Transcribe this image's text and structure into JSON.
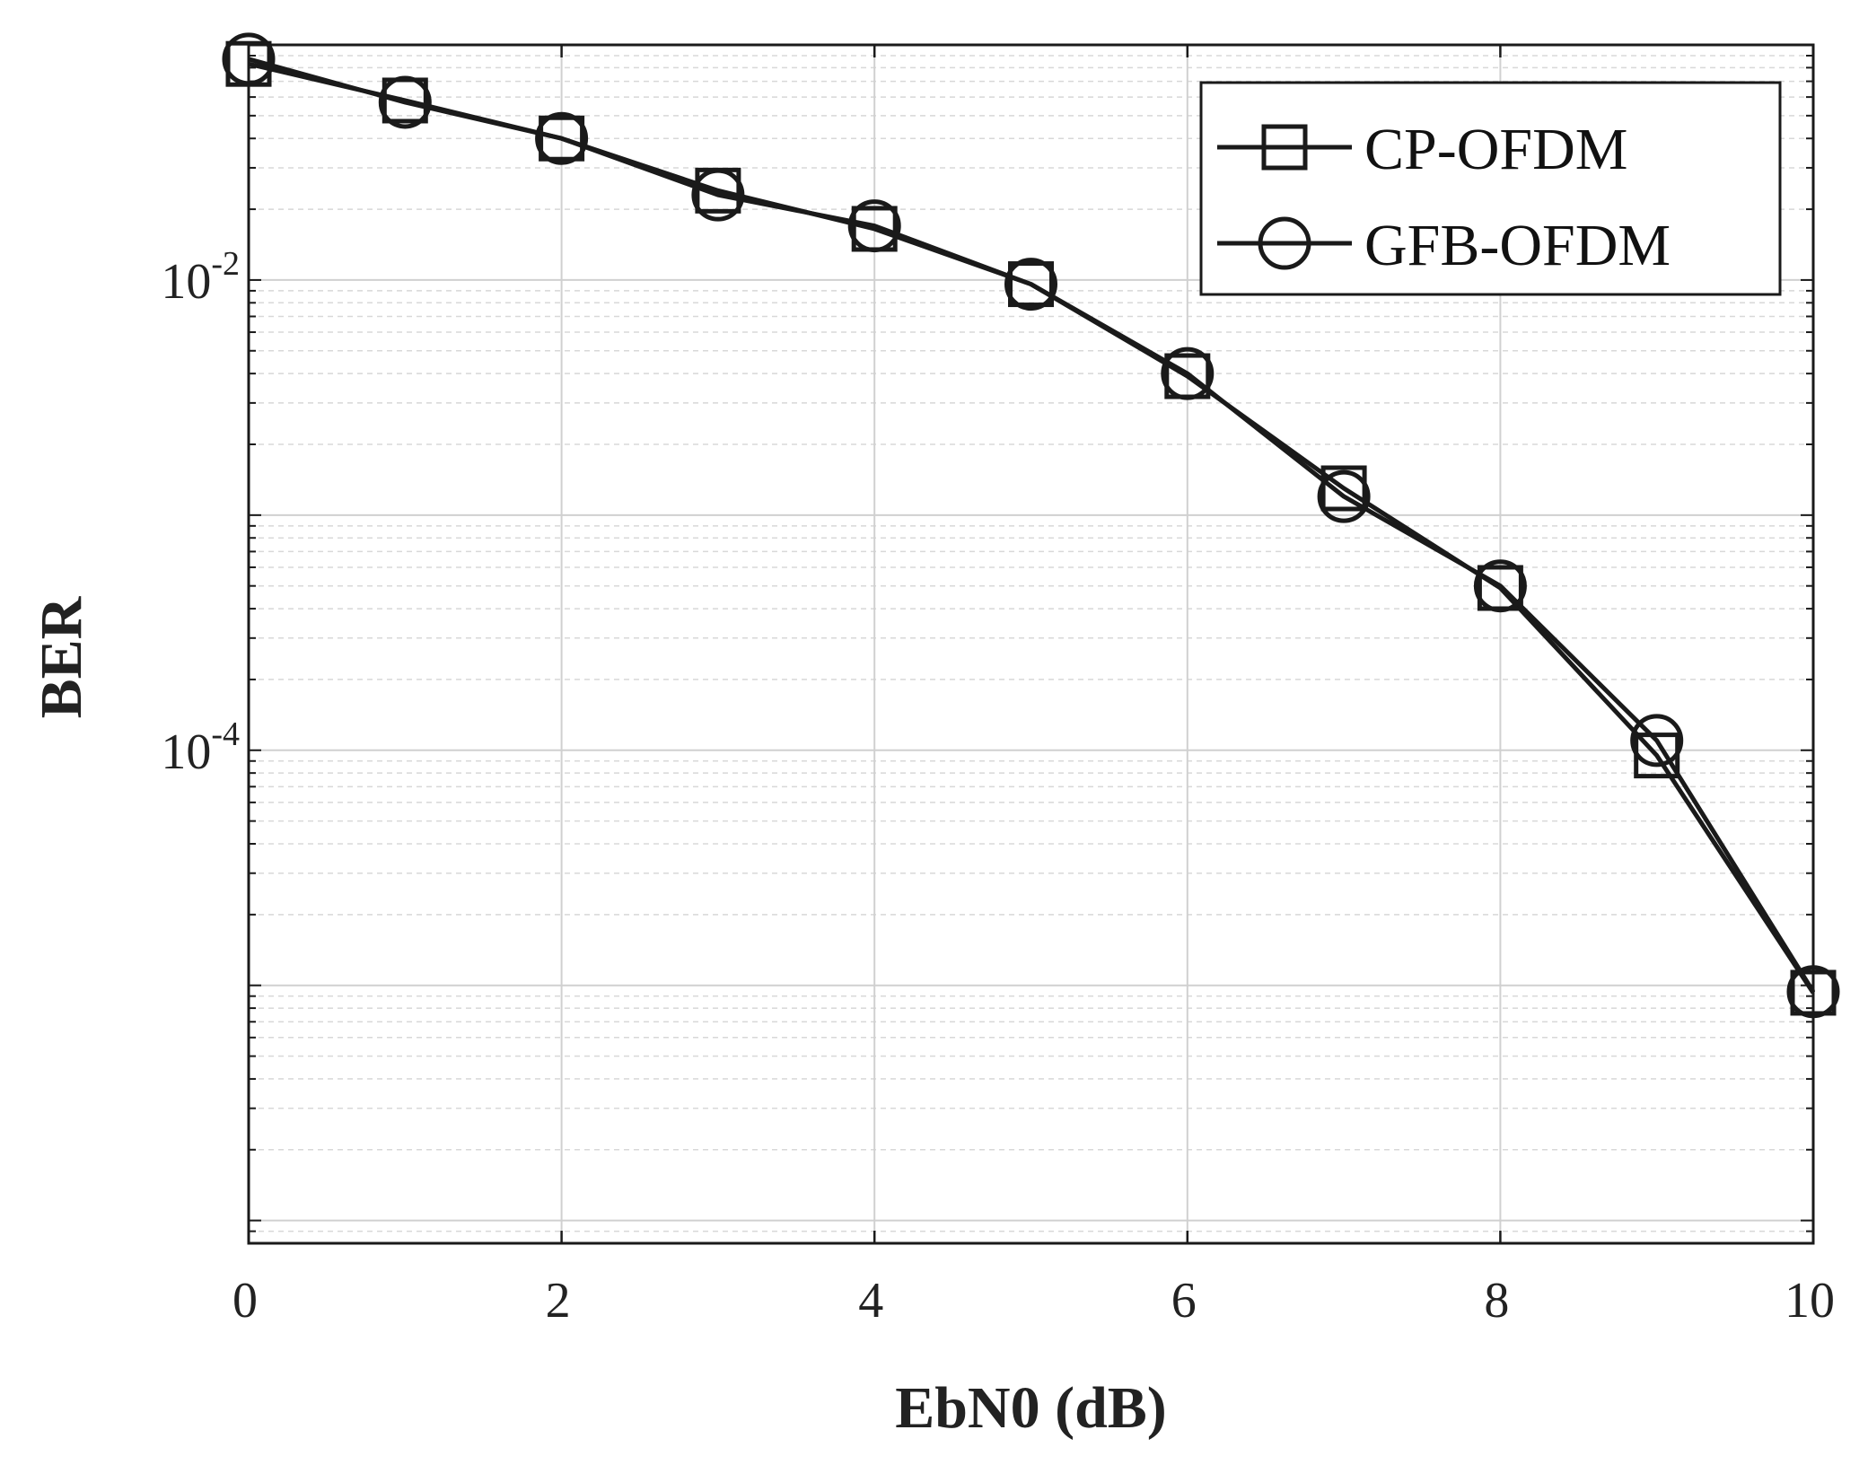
{
  "chart_data": {
    "type": "line",
    "title": "",
    "xlabel": "EbN0 (dB)",
    "ylabel": "BER",
    "x_scale": "linear",
    "y_scale": "log",
    "xlim": [
      0,
      10
    ],
    "ylim": [
      8e-07,
      0.1
    ],
    "x_ticks": [
      0,
      2,
      4,
      6,
      8,
      10
    ],
    "x_tick_labels": [
      "0",
      "2",
      "4",
      "6",
      "8",
      "10"
    ],
    "y_ticks": [
      {
        "value": 0.01,
        "base": "10",
        "exponent": "-2"
      },
      {
        "value": 0.0001,
        "base": "10",
        "exponent": "-4"
      }
    ],
    "grid": true,
    "minor_grid": true,
    "legend_position": "top-right",
    "x": [
      0,
      1,
      2,
      3,
      4,
      5,
      6,
      7,
      8,
      9,
      10
    ],
    "series": [
      {
        "name": "CP-OFDM",
        "marker": "square",
        "color": "#1a1a1a",
        "values": [
          0.083,
          0.058,
          0.04,
          0.024,
          0.0165,
          0.0096,
          0.0039,
          0.0013,
          0.00049,
          9.5e-05,
          9.3e-06
        ]
      },
      {
        "name": "GFB-OFDM",
        "marker": "circle",
        "color": "#1a1a1a",
        "values": [
          0.087,
          0.057,
          0.04,
          0.023,
          0.017,
          0.0096,
          0.004,
          0.0012,
          0.0005,
          0.00011,
          9.4e-06
        ]
      }
    ]
  }
}
